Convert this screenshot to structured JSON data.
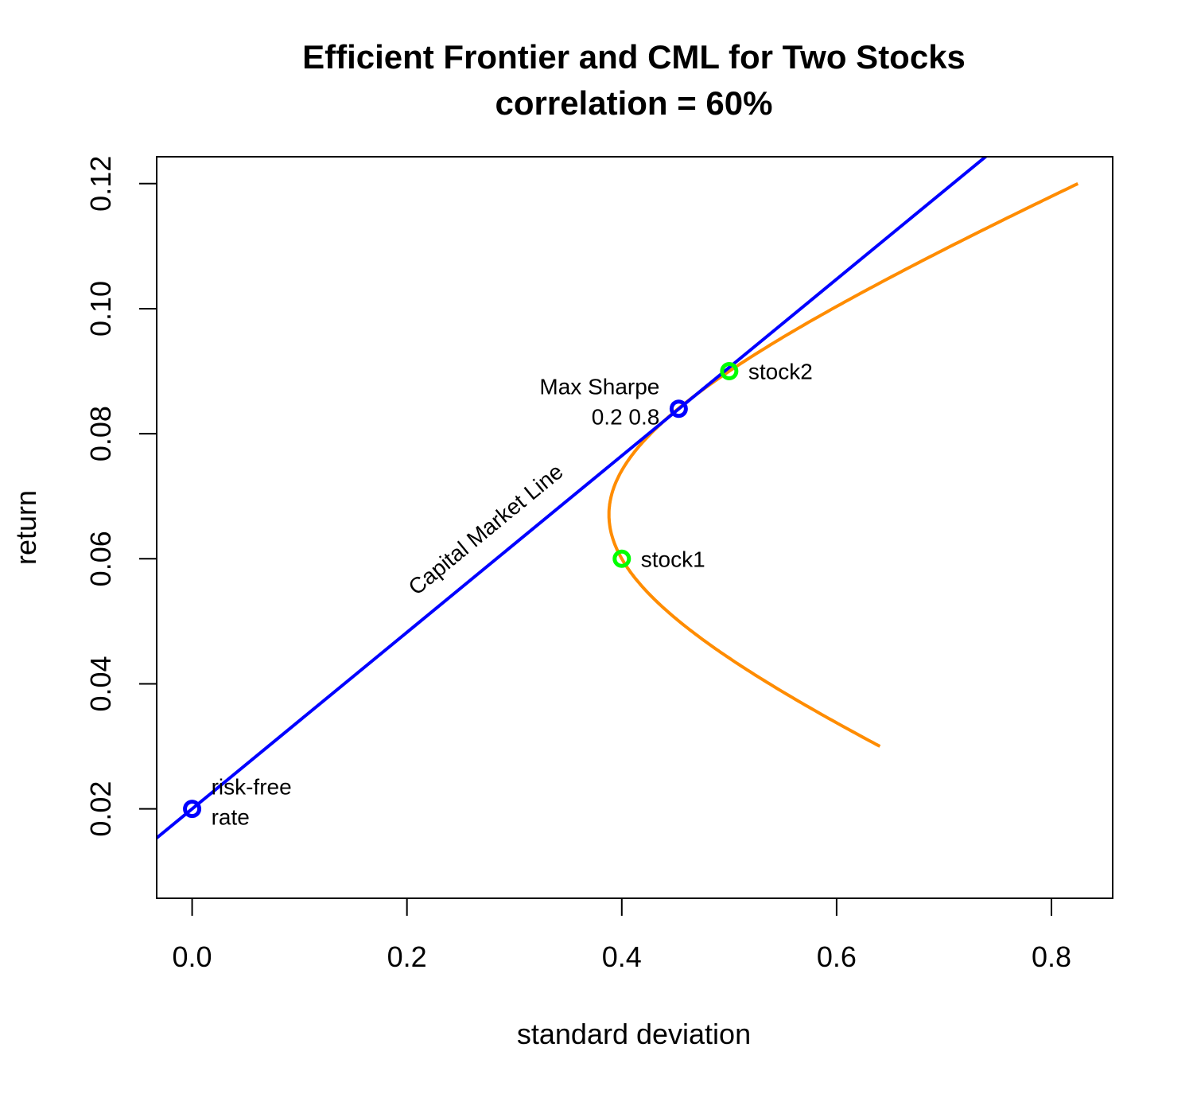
{
  "chart_data": {
    "type": "line",
    "title": "Efficient Frontier and CML for Two Stocks",
    "subtitle": "correlation = 60%",
    "xlabel": "standard deviation",
    "ylabel": "return",
    "xlim": [
      -0.033,
      0.857
    ],
    "ylim": [
      0.0057,
      0.1243
    ],
    "x_ticks": [
      0.0,
      0.2,
      0.4,
      0.6,
      0.8
    ],
    "x_tick_labels": [
      "0.0",
      "0.2",
      "0.4",
      "0.6",
      "0.8"
    ],
    "y_ticks": [
      0.02,
      0.04,
      0.06,
      0.08,
      0.1,
      0.12
    ],
    "y_tick_labels": [
      "0.02",
      "0.04",
      "0.06",
      "0.08",
      "0.10",
      "0.12"
    ],
    "grid": false,
    "frontier": {
      "color": "#ff8c00",
      "stock1": {
        "mean": 0.06,
        "sd": 0.4
      },
      "stock2": {
        "mean": 0.09,
        "sd": 0.5
      },
      "correlation": 0.6,
      "weight2_range": [
        -1,
        2
      ]
    },
    "cml": {
      "label": "Capital Market Line",
      "color": "#0000ff",
      "intercept": 0.02,
      "slope": 0.1412
    },
    "points": [
      {
        "name": "risk-free rate",
        "x": 0.0,
        "y": 0.02,
        "color": "#0000ff",
        "label_lines": [
          "risk-free",
          "rate"
        ]
      },
      {
        "name": "Max Sharpe",
        "x": 0.453,
        "y": 0.084,
        "color": "#0000ff",
        "label_lines": [
          "Max Sharpe",
          "0.2 0.8"
        ]
      },
      {
        "name": "stock1",
        "x": 0.4,
        "y": 0.06,
        "color": "#00ff00",
        "label_lines": [
          "stock1"
        ]
      },
      {
        "name": "stock2",
        "x": 0.5,
        "y": 0.09,
        "color": "#00ff00",
        "label_lines": [
          "stock2"
        ]
      }
    ]
  }
}
